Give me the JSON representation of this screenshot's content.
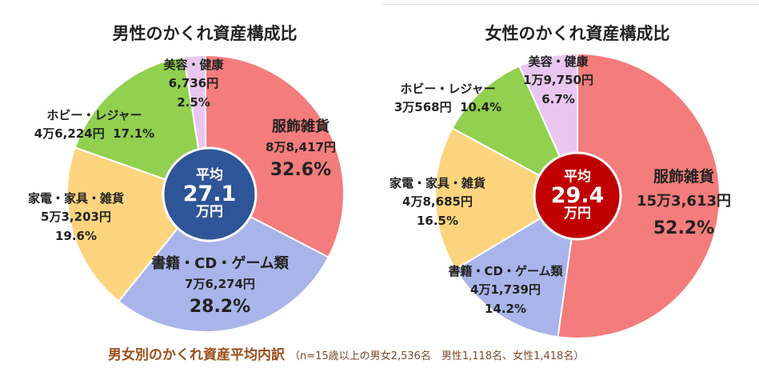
{
  "chart_data": [
    {
      "type": "pie",
      "title": "男性のかくれ資産構成比",
      "center": {
        "label": "平均",
        "value": "27.1",
        "unit": "万円"
      },
      "slices": [
        {
          "name": "服飾雑貨",
          "amount": "8万8,417円",
          "percent": 32.6,
          "percent_label": "32.6%",
          "color": "#f47c7c"
        },
        {
          "name": "書籍・CD・ゲーム類",
          "amount": "7万6,274円",
          "percent": 28.2,
          "percent_label": "28.2%",
          "color": "#a9b4ea"
        },
        {
          "name": "家電・家具・雑貨",
          "amount": "5万3,203円",
          "percent": 19.6,
          "percent_label": "19.6%",
          "color": "#fdd47e"
        },
        {
          "name": "ホビー・レジャー",
          "amount": "4万6,224円",
          "percent": 17.1,
          "percent_label": "17.1%",
          "color": "#92d050"
        },
        {
          "name": "美容・健康",
          "amount": "6,736円",
          "percent": 2.5,
          "percent_label": "2.5%",
          "color": "#e9c6f0"
        }
      ],
      "center_color": "#2e5597"
    },
    {
      "type": "pie",
      "title": "女性のかくれ資産構成比",
      "center": {
        "label": "平均",
        "value": "29.4",
        "unit": "万円"
      },
      "slices": [
        {
          "name": "服飾雑貨",
          "amount": "15万3,613円",
          "percent": 52.2,
          "percent_label": "52.2%",
          "color": "#f47c7c"
        },
        {
          "name": "書籍・CD・ゲーム類",
          "amount": "4万1,739円",
          "percent": 14.2,
          "percent_label": "14.2%",
          "color": "#a9b4ea"
        },
        {
          "name": "家電・家具・雑貨",
          "amount": "4万8,685円",
          "percent": 16.5,
          "percent_label": "16.5%",
          "color": "#fdd47e"
        },
        {
          "name": "ホビー・レジャー",
          "amount": "3万568円",
          "percent": 10.4,
          "percent_label": "10.4%",
          "color": "#92d050"
        },
        {
          "name": "美容・健康",
          "amount": "1万9,750円",
          "percent": 6.7,
          "percent_label": "6.7%",
          "color": "#e9c6f0"
        }
      ],
      "center_color": "#c00000"
    }
  ],
  "footer": {
    "title": "男女別のかくれ資産平均内訳",
    "note": "（n=15歳以上の男女2,536名　男性1,118名、女性1,418名）"
  }
}
